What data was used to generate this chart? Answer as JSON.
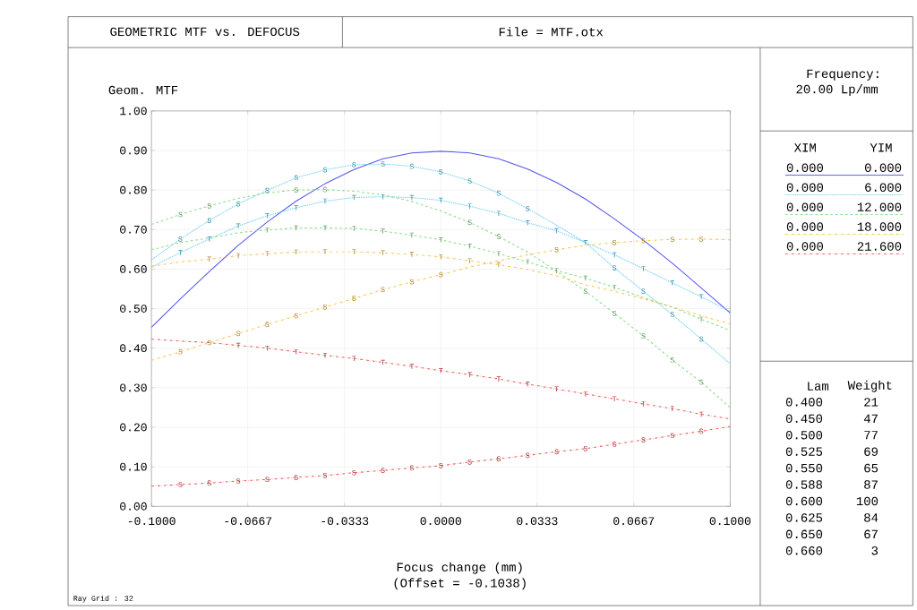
{
  "chart_data": {
    "type": "line",
    "title": "GEOMETRIC MTF vs. DEFOCUS",
    "xlabel": "Focus change (mm)",
    "ylabel": "Geom. MTF",
    "x": [
      -0.1,
      -0.09,
      -0.08,
      -0.07,
      -0.06,
      -0.05,
      -0.04,
      -0.03,
      -0.02,
      -0.01,
      0,
      0.01,
      0.02,
      0.03,
      0.04,
      0.05,
      0.06,
      0.07,
      0.08,
      0.09,
      0.1
    ],
    "xlim": [
      -0.1,
      0.1
    ],
    "xticks": [
      {
        "value": -0.1,
        "label": "-0.1000"
      },
      {
        "value": -0.0667,
        "label": "-0.0667"
      },
      {
        "value": -0.0333,
        "label": "-0.0333"
      },
      {
        "value": 0,
        "label": "0.0000"
      },
      {
        "value": 0.0333,
        "label": "0.0333"
      },
      {
        "value": 0.0667,
        "label": "0.0667"
      },
      {
        "value": 0.1,
        "label": "0.1000"
      }
    ],
    "ylim": [
      0,
      1
    ],
    "yticks": [
      {
        "value": 0,
        "label": "0.00"
      },
      {
        "value": 0.1,
        "label": "0.10"
      },
      {
        "value": 0.2,
        "label": "0.20"
      },
      {
        "value": 0.3,
        "label": "0.30"
      },
      {
        "value": 0.4,
        "label": "0.40"
      },
      {
        "value": 0.5,
        "label": "0.50"
      },
      {
        "value": 0.6,
        "label": "0.60"
      },
      {
        "value": 0.7,
        "label": "0.70"
      },
      {
        "value": 0.8,
        "label": "0.80"
      },
      {
        "value": 0.9,
        "label": "0.90"
      },
      {
        "value": 1,
        "label": "1.00"
      }
    ],
    "grid": true,
    "series": [
      {
        "color": "#5555ee",
        "line_style": "solid",
        "values": [
          0.453,
          0.525,
          0.594,
          0.66,
          0.719,
          0.772,
          0.816,
          0.852,
          0.879,
          0.894,
          0.898,
          0.894,
          0.879,
          0.853,
          0.819,
          0.777,
          0.727,
          0.673,
          0.615,
          0.552,
          0.489
        ]
      },
      {
        "name": "T",
        "color": "#55c8f0",
        "line_style": "dotted",
        "values": [
          0.605,
          0.642,
          0.676,
          0.709,
          0.735,
          0.755,
          0.772,
          0.781,
          0.783,
          0.781,
          0.774,
          0.759,
          0.741,
          0.717,
          0.697,
          0.667,
          0.636,
          0.601,
          0.565,
          0.53,
          0.493
        ]
      },
      {
        "name": "S",
        "color": "#55c8f0",
        "line_style": "dotted",
        "values": [
          0.623,
          0.676,
          0.723,
          0.765,
          0.799,
          0.831,
          0.851,
          0.864,
          0.866,
          0.86,
          0.846,
          0.823,
          0.792,
          0.753,
          0.711,
          0.667,
          0.603,
          0.544,
          0.485,
          0.423,
          0.361
        ]
      },
      {
        "name": "T",
        "color": "#88dd88",
        "line_style": "dashed",
        "values": [
          0.649,
          0.667,
          0.679,
          0.692,
          0.699,
          0.704,
          0.704,
          0.703,
          0.696,
          0.686,
          0.674,
          0.658,
          0.639,
          0.618,
          0.596,
          0.577,
          0.554,
          0.528,
          0.504,
          0.473,
          0.445
        ]
      },
      {
        "name": "S",
        "color": "#88dd88",
        "line_style": "dashed",
        "values": [
          0.713,
          0.738,
          0.76,
          0.779,
          0.793,
          0.8,
          0.801,
          0.797,
          0.788,
          0.771,
          0.747,
          0.718,
          0.682,
          0.643,
          0.595,
          0.544,
          0.488,
          0.431,
          0.37,
          0.314,
          0.25
        ]
      },
      {
        "name": "T",
        "color": "#f5c14a",
        "line_style": "dashdot",
        "values": [
          0.607,
          0.618,
          0.625,
          0.634,
          0.639,
          0.643,
          0.644,
          0.644,
          0.641,
          0.637,
          0.631,
          0.621,
          0.611,
          0.599,
          0.583,
          0.56,
          0.544,
          0.525,
          0.504,
          0.482,
          0.461
        ]
      },
      {
        "name": "S",
        "color": "#f5c14a",
        "line_style": "dashdot",
        "values": [
          0.369,
          0.391,
          0.414,
          0.437,
          0.46,
          0.482,
          0.504,
          0.526,
          0.548,
          0.568,
          0.586,
          0.605,
          0.621,
          0.636,
          0.649,
          0.66,
          0.667,
          0.672,
          0.675,
          0.676,
          0.674
        ]
      },
      {
        "name": "T",
        "color": "#ee5555",
        "line_style": "dashdot",
        "values": [
          0.423,
          0.418,
          0.414,
          0.407,
          0.4,
          0.391,
          0.382,
          0.374,
          0.364,
          0.354,
          0.343,
          0.333,
          0.322,
          0.309,
          0.297,
          0.284,
          0.272,
          0.259,
          0.247,
          0.233,
          0.221
        ]
      },
      {
        "name": "S",
        "color": "#ee5555",
        "line_style": "dashdot",
        "values": [
          0.051,
          0.055,
          0.059,
          0.064,
          0.068,
          0.073,
          0.078,
          0.085,
          0.091,
          0.097,
          0.103,
          0.112,
          0.12,
          0.129,
          0.138,
          0.146,
          0.157,
          0.168,
          0.179,
          0.19,
          0.202
        ]
      }
    ],
    "annotations": [
      "File = MTF.otx",
      "Frequency:",
      "20.00 Lp/mm",
      "XIM",
      "YIM",
      "0.000",
      "0.000",
      "0.000",
      "6.000",
      "0.000",
      "12.000",
      "0.000",
      "18.000",
      "0.000",
      "21.600",
      "Lam",
      "Weight",
      "0.400",
      "21",
      "0.450",
      "47",
      "0.500",
      "77",
      "0.525",
      "69",
      "0.550",
      "65",
      "0.588",
      "87",
      "0.600",
      "100",
      "0.625",
      "84",
      "0.650",
      "67",
      "0.660",
      "3",
      "(Offset = -0.1038)",
      "Ray Grid : 32"
    ]
  }
}
